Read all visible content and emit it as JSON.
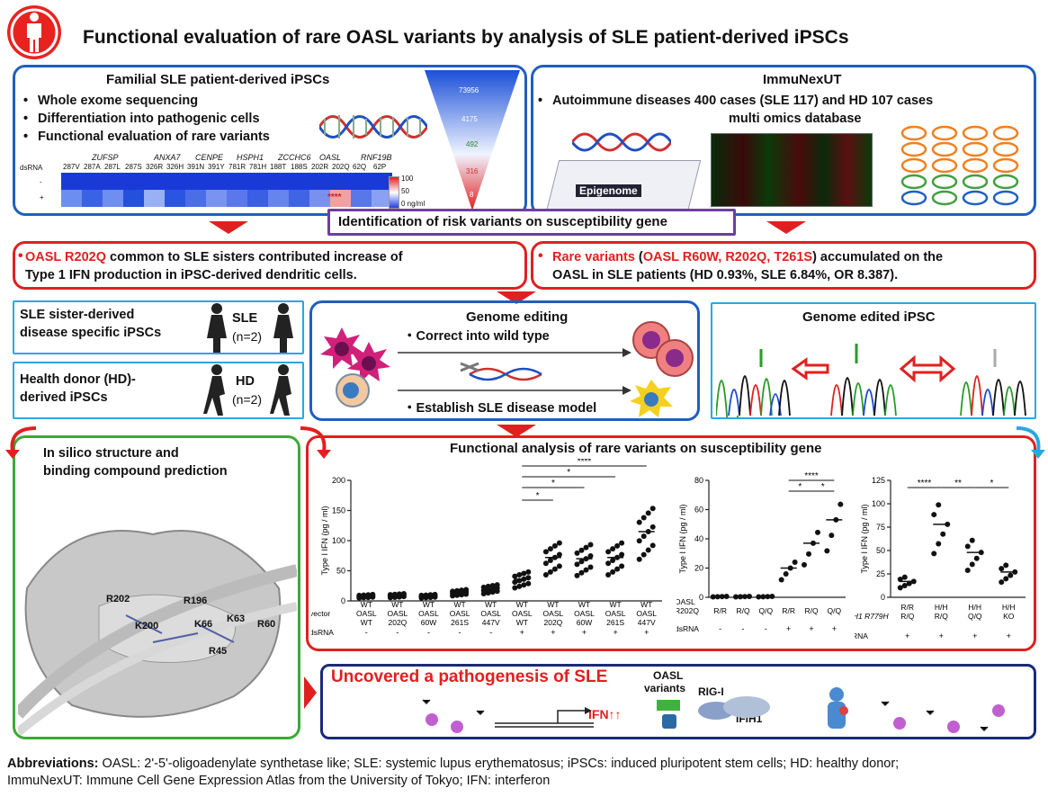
{
  "title": "Functional evaluation of rare OASL variants by analysis of SLE patient-derived iPSCs",
  "panel_ipsc": {
    "heading": "Familial SLE patient-derived iPSCs",
    "bullets": [
      "Whole exome sequencing",
      "Differentiation into pathogenic cells",
      "Functional evaluation of rare variants"
    ],
    "heat_genes": [
      "ZUFSP",
      "ANXA7",
      "CENPE",
      "HSPH1",
      "ZCCHC6",
      "OASL",
      "RNF19B"
    ],
    "heat_cols": [
      "287V",
      "287A",
      "287L",
      "287S",
      "326R",
      "326H",
      "391N",
      "391Y",
      "781R",
      "781H",
      "188T",
      "188S",
      "202R",
      "202Q",
      "62Q",
      "62P"
    ],
    "row_label": "dsRNA",
    "rows": [
      "-",
      "+"
    ],
    "sig": "****",
    "scale": [
      "100",
      "50",
      "0 ng/ml"
    ],
    "funnel": [
      "73956",
      "4175",
      "492",
      "316",
      "8"
    ]
  },
  "panel_immunexut": {
    "heading": "ImmuNexUT",
    "line1": "Autoimmune diseases  400 cases (SLE 117) and HD 107 cases",
    "line2": "multi omics database",
    "epigenome": "Epigenome"
  },
  "identification": "Identification of risk variants on susceptibility gene",
  "finding1": {
    "red": "OASL R202Q",
    "rest1": " common to SLE sisters contributed increase of",
    "line2": "Type 1 IFN production in iPSC-derived dendritic cells."
  },
  "finding2": {
    "red": "Rare variants",
    "p1": " (",
    "red2": "OASL R60W, R202Q, T261S",
    "p2": ") accumulated on the",
    "line2": "OASL in SLE patients (HD 0.93%, SLE 6.84%, OR 8.387)."
  },
  "sle_box": {
    "l1": "SLE sister-derived",
    "l2": "disease specific iPSCs",
    "tag": "SLE",
    "n": "(n=2)"
  },
  "hd_box": {
    "l1": "Health donor (HD)-",
    "l2": "derived iPSCs",
    "tag": "HD",
    "n": "(n=2)"
  },
  "editing": {
    "heading": "Genome editing",
    "s1": "・Correct into wild type",
    "s2": "・Establish SLE disease model"
  },
  "edited": {
    "heading": "Genome edited iPSC"
  },
  "insilico": {
    "l1": "In silico structure and",
    "l2": "binding compound prediction",
    "residues": [
      "R202",
      "R196",
      "K200",
      "K66",
      "K63",
      "R60",
      "R45"
    ]
  },
  "functional": {
    "heading": "Functional analysis of rare variants on susceptibility gene"
  },
  "chart_data": [
    {
      "type": "scatter",
      "ylabel": "Type I IFN (pg / ml)",
      "ylim": [
        0,
        200
      ],
      "yticks": [
        "0",
        "50",
        "100",
        "150",
        "200"
      ],
      "row_labels": [
        "vector",
        "dsRNA"
      ],
      "categories": [
        "WT",
        "WT",
        "WT",
        "WT",
        "WT",
        "WT",
        "WT",
        "WT",
        "WT",
        "WT"
      ],
      "categories2": [
        "OASL WT",
        "OASL 202Q",
        "OASL 60W",
        "OASL 261S",
        "OASL 447V",
        "OASL WT",
        "OASL 202Q",
        "OASL 60W",
        "OASL 261S",
        "OASL 447V"
      ],
      "dsRNA": [
        "-",
        "-",
        "-",
        "-",
        "-",
        "+",
        "+",
        "+",
        "+",
        "+"
      ],
      "means": [
        8,
        9,
        8,
        14,
        20,
        36,
        72,
        70,
        72,
        115
      ],
      "sig": [
        "*",
        "*",
        "*",
        "****"
      ]
    },
    {
      "type": "scatter",
      "ylabel": "Type I IFN (pg / ml)",
      "ylim": [
        0,
        80
      ],
      "yticks": [
        "0",
        "20",
        "40",
        "60",
        "80"
      ],
      "row_labels": [
        "OASL R202Q",
        "dsRNA"
      ],
      "categories": [
        "R/R",
        "R/Q",
        "Q/Q",
        "R/R",
        "R/Q",
        "Q/Q"
      ],
      "dsRNA": [
        "-",
        "-",
        "-",
        "+",
        "+",
        "+"
      ],
      "means": [
        0.5,
        0.5,
        0.5,
        20,
        37,
        53
      ],
      "sig": [
        "****",
        "*",
        "*"
      ]
    },
    {
      "type": "scatter",
      "ylabel": "Type I IFN (pg / ml)",
      "ylim": [
        0,
        125
      ],
      "yticks": [
        "0",
        "25",
        "50",
        "75",
        "100",
        "125"
      ],
      "row_labels": [
        "IFIH1 R779H",
        "dsRNA"
      ],
      "categories": [
        "R/R",
        "H/H",
        "H/H",
        "H/H"
      ],
      "categories2": [
        "R/Q",
        "R/Q",
        "Q/Q",
        "KO"
      ],
      "dsRNA": [
        "+",
        "+",
        "+",
        "+"
      ],
      "means": [
        17,
        78,
        48,
        27
      ],
      "sig": [
        "****",
        "**",
        "*"
      ]
    }
  ],
  "uncovered": {
    "heading": "Uncovered a pathogenesis of SLE",
    "oasl": "OASL",
    "variants": "variants",
    "rigi": "RIG-I",
    "ifih1": "IFIH1",
    "ifn": "IFN↑↑"
  },
  "abbrev": {
    "label": "Abbreviations:",
    "l1": " OASL: 2'-5'-oligoadenylate synthetase like; SLE: systemic lupus erythematosus; iPSCs: induced pluripotent stem cells;  HD: healthy donor;",
    "l2": "ImmuNexUT: Immune Cell Gene Expression Atlas from the University of Tokyo; IFN: interferon"
  }
}
